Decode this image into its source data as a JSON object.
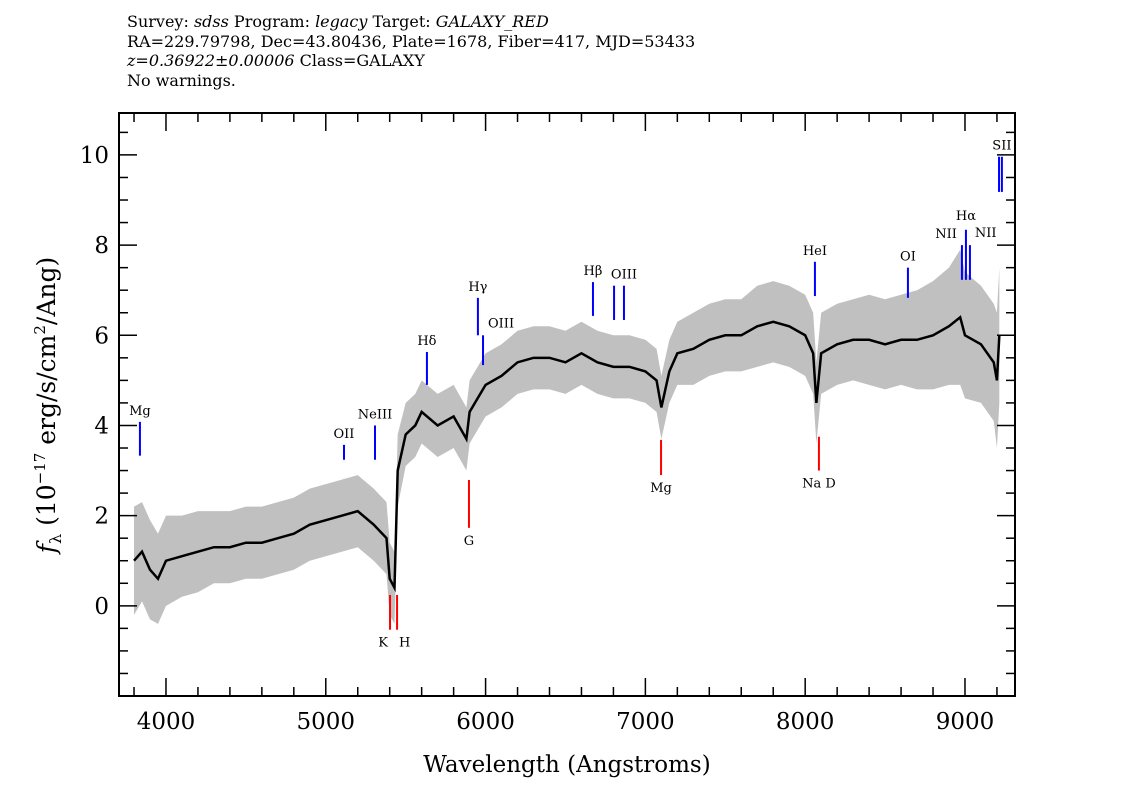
{
  "header": {
    "survey_label": "Survey:",
    "survey": "sdss",
    "program_label": "Program:",
    "program": "legacy",
    "target_label": "Target:",
    "target": "GALAXY_RED",
    "line2": "RA=229.79798, Dec=43.80436, Plate=1678, Fiber=417, MJD=53433",
    "redshift": "z=0.36922±0.00006",
    "class": "Class=GALAXY",
    "warnings": "No warnings."
  },
  "chart_data": {
    "type": "line",
    "xlabel": "Wavelength (Angstroms)",
    "ylabel": {
      "symbol": "f",
      "sub": "λ",
      "pre": " (10",
      "exp": "−17",
      "mid": " erg/s/cm",
      "exp2": "2",
      "post": "/Ang)"
    },
    "xlim": [
      3706,
      9313
    ],
    "ylim": [
      -2.0,
      10.93
    ],
    "xticks": [
      4000,
      5000,
      6000,
      7000,
      8000,
      9000
    ],
    "yticks": [
      0,
      2,
      4,
      6,
      8,
      10
    ],
    "grid": false,
    "colors": {
      "flux": "#000000",
      "error": "#c0c0c0",
      "emission": "#0000ff",
      "absorption": "#ff0000"
    },
    "spectrum": {
      "x": [
        3800,
        3850,
        3900,
        3950,
        4000,
        4100,
        4200,
        4300,
        4400,
        4500,
        4600,
        4700,
        4800,
        4900,
        5000,
        5100,
        5200,
        5300,
        5380,
        5400,
        5430,
        5450,
        5500,
        5560,
        5600,
        5700,
        5800,
        5880,
        5900,
        5950,
        6000,
        6100,
        6200,
        6300,
        6400,
        6500,
        6600,
        6700,
        6800,
        6900,
        7000,
        7070,
        7100,
        7150,
        7200,
        7300,
        7400,
        7500,
        7600,
        7700,
        7800,
        7900,
        8000,
        8050,
        8070,
        8100,
        8200,
        8300,
        8400,
        8500,
        8600,
        8700,
        8800,
        8900,
        8970,
        9000,
        9100,
        9180,
        9200,
        9215
      ],
      "flux": [
        1.0,
        1.2,
        0.8,
        0.6,
        1.0,
        1.1,
        1.2,
        1.3,
        1.3,
        1.4,
        1.4,
        1.5,
        1.6,
        1.8,
        1.9,
        2.0,
        2.1,
        1.8,
        1.5,
        0.6,
        0.4,
        3.0,
        3.8,
        4.0,
        4.3,
        4.0,
        4.2,
        3.7,
        4.3,
        4.6,
        4.9,
        5.1,
        5.4,
        5.5,
        5.5,
        5.4,
        5.6,
        5.4,
        5.3,
        5.3,
        5.2,
        5.0,
        4.4,
        5.2,
        5.6,
        5.7,
        5.9,
        6.0,
        6.0,
        6.2,
        6.3,
        6.2,
        6.0,
        5.6,
        4.5,
        5.6,
        5.8,
        5.9,
        5.9,
        5.8,
        5.9,
        5.9,
        6.0,
        6.2,
        6.4,
        6.0,
        5.8,
        5.4,
        5.0,
        6.0
      ],
      "error": [
        1.2,
        1.1,
        1.1,
        1.0,
        1.0,
        0.9,
        0.9,
        0.8,
        0.8,
        0.8,
        0.8,
        0.8,
        0.8,
        0.8,
        0.8,
        0.8,
        0.8,
        0.8,
        0.8,
        0.8,
        0.8,
        0.8,
        0.7,
        0.7,
        0.7,
        0.7,
        0.7,
        0.7,
        0.7,
        0.7,
        0.7,
        0.7,
        0.7,
        0.7,
        0.7,
        0.7,
        0.7,
        0.7,
        0.7,
        0.7,
        0.7,
        0.7,
        0.7,
        0.7,
        0.7,
        0.8,
        0.8,
        0.8,
        0.8,
        0.9,
        0.9,
        0.9,
        0.9,
        0.9,
        0.9,
        0.9,
        0.9,
        0.9,
        1.0,
        1.0,
        1.0,
        1.1,
        1.2,
        1.3,
        1.5,
        1.4,
        1.3,
        1.3,
        1.5,
        1.5
      ]
    },
    "emission_lines": [
      {
        "label": "Mg",
        "x": 3837,
        "top": 4.08,
        "bottom": 3.33
      },
      {
        "label": "OII",
        "x": 5114,
        "top": 3.57,
        "bottom": 3.24
      },
      {
        "label": "NeIII",
        "x": 5308,
        "top": 4.0,
        "bottom": 3.24
      },
      {
        "label": "Hδ",
        "x": 5633,
        "top": 5.63,
        "bottom": 4.9
      },
      {
        "label": "Hγ",
        "x": 5952,
        "top": 6.83,
        "bottom": 6.0
      },
      {
        "label": "OIII",
        "x": 5984,
        "top": 6.0,
        "bottom": 5.34,
        "label_side": "right"
      },
      {
        "label": "Hβ",
        "x": 6672,
        "top": 7.18,
        "bottom": 6.43
      },
      {
        "label": "",
        "x": 6804,
        "top": 7.1,
        "bottom": 6.34
      },
      {
        "label": "OIII",
        "x": 6866,
        "top": 7.1,
        "bottom": 6.34
      },
      {
        "label": "HeI",
        "x": 8061,
        "top": 7.63,
        "bottom": 6.87
      },
      {
        "label": "OI",
        "x": 8643,
        "top": 7.5,
        "bottom": 6.83
      },
      {
        "label": "NII",
        "x": 8981,
        "top": 8.0,
        "bottom": 7.23,
        "label_side": "left"
      },
      {
        "label": "Hα",
        "x": 9006,
        "top": 8.34,
        "bottom": 7.23
      },
      {
        "label": "NII",
        "x": 9031,
        "top": 8.0,
        "bottom": 7.23,
        "label_side": "right"
      },
      {
        "label": "",
        "x": 9213,
        "top": 9.96,
        "bottom": 9.18
      },
      {
        "label": "SII",
        "x": 9231,
        "top": 9.96,
        "bottom": 9.18
      }
    ],
    "absorption_lines": [
      {
        "label": "K",
        "x": 5402,
        "top": 0.24,
        "bottom": -0.53
      },
      {
        "label": "H",
        "x": 5446,
        "top": 0.24,
        "bottom": -0.53
      },
      {
        "label": "G",
        "x": 5896,
        "top": 2.79,
        "bottom": 1.73
      },
      {
        "label": "Mg",
        "x": 7098,
        "top": 3.68,
        "bottom": 2.9
      },
      {
        "label": "Na D",
        "x": 8086,
        "top": 3.75,
        "bottom": 3.0
      }
    ]
  }
}
